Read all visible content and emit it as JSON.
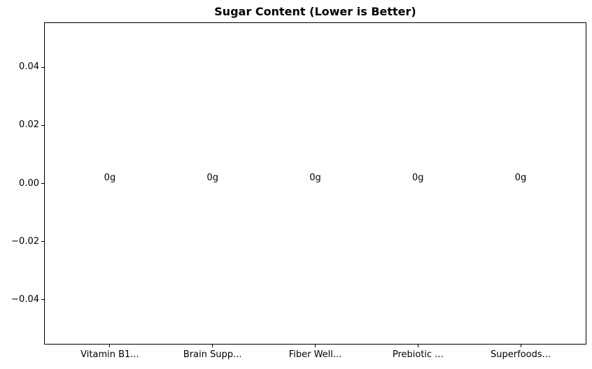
{
  "chart_data": {
    "type": "bar",
    "title": "Sugar Content (Lower is Better)",
    "categories": [
      "Vitamin B1...",
      "Brain Supp...",
      "Fiber Well...",
      "Prebiotic ...",
      "Superfoods..."
    ],
    "values": [
      0,
      0,
      0,
      0,
      0
    ],
    "bar_value_labels": [
      "0g",
      "0g",
      "0g",
      "0g",
      "0g"
    ],
    "xlabel": "",
    "ylabel": "",
    "xlim": [
      -0.64,
      4.64
    ],
    "ylim": [
      -0.0555,
      0.0555
    ],
    "yticks": [
      {
        "value": 0.04,
        "label": "0.04"
      },
      {
        "value": 0.02,
        "label": "0.02"
      },
      {
        "value": 0.0,
        "label": "0.00"
      },
      {
        "value": -0.02,
        "label": "−0.02"
      },
      {
        "value": -0.04,
        "label": "−0.04"
      }
    ],
    "grid": false,
    "legend_position": "none"
  },
  "colors": {
    "background": "#ffffff",
    "text": "#000000",
    "axes_edge": "#000000"
  }
}
